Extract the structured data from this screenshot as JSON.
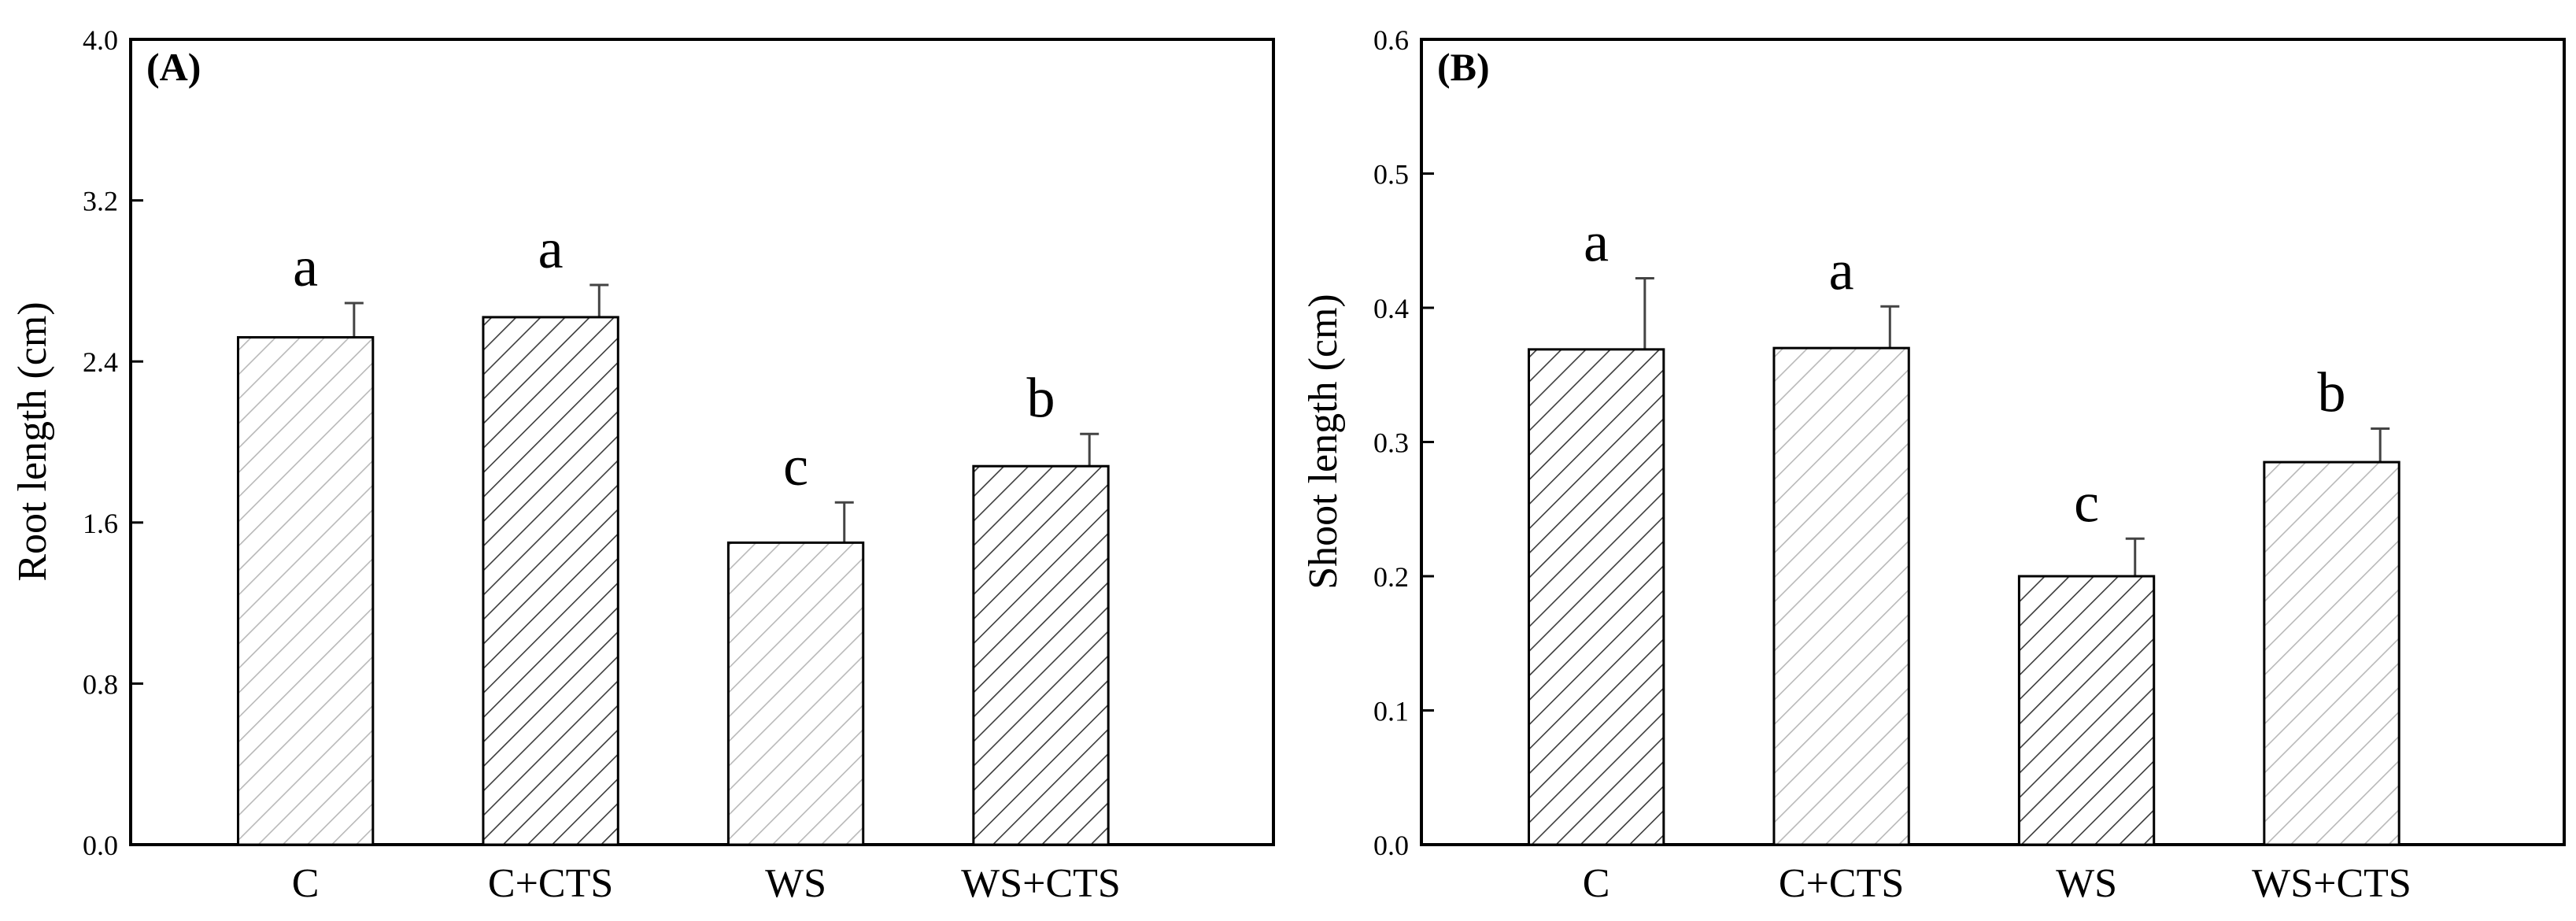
{
  "colors": {
    "frame": "#000000",
    "hatch_dark": "#3a3a3a",
    "hatch_light": "#b8b8b8",
    "background": "#ffffff"
  },
  "chart_data": [
    {
      "type": "bar",
      "panel_label": "(A)",
      "categories": [
        "C",
        "C+CTS",
        "WS",
        "WS+CTS"
      ],
      "values": [
        2.52,
        2.62,
        1.5,
        1.88
      ],
      "errors": [
        0.17,
        0.16,
        0.2,
        0.16
      ],
      "significance": [
        "a",
        "a",
        "c",
        "b"
      ],
      "hatch": [
        "light",
        "dark",
        "light",
        "dark"
      ],
      "title": "",
      "xlabel": "",
      "ylabel": "Root length (cm)",
      "ylim": [
        0,
        4.0
      ],
      "yticks": [
        0.0,
        0.8,
        1.6,
        2.4,
        3.2,
        4.0
      ],
      "ytick_labels": [
        "0.0",
        "0.8",
        "1.6",
        "2.4",
        "3.2",
        "4.0"
      ],
      "grid": false,
      "legend": "none"
    },
    {
      "type": "bar",
      "panel_label": "(B)",
      "categories": [
        "C",
        "C+CTS",
        "WS",
        "WS+CTS"
      ],
      "values": [
        0.369,
        0.37,
        0.2,
        0.285
      ],
      "errors": [
        0.053,
        0.031,
        0.028,
        0.025
      ],
      "significance": [
        "a",
        "a",
        "c",
        "b"
      ],
      "hatch": [
        "dark",
        "light",
        "dark",
        "light"
      ],
      "title": "",
      "xlabel": "",
      "ylabel": "Shoot length (cm)",
      "ylim": [
        0,
        0.6
      ],
      "yticks": [
        0.0,
        0.1,
        0.2,
        0.3,
        0.4,
        0.5,
        0.6
      ],
      "ytick_labels": [
        "0.0",
        "0.1",
        "0.2",
        "0.3",
        "0.4",
        "0.5",
        "0.6"
      ],
      "grid": false,
      "legend": "none"
    }
  ]
}
